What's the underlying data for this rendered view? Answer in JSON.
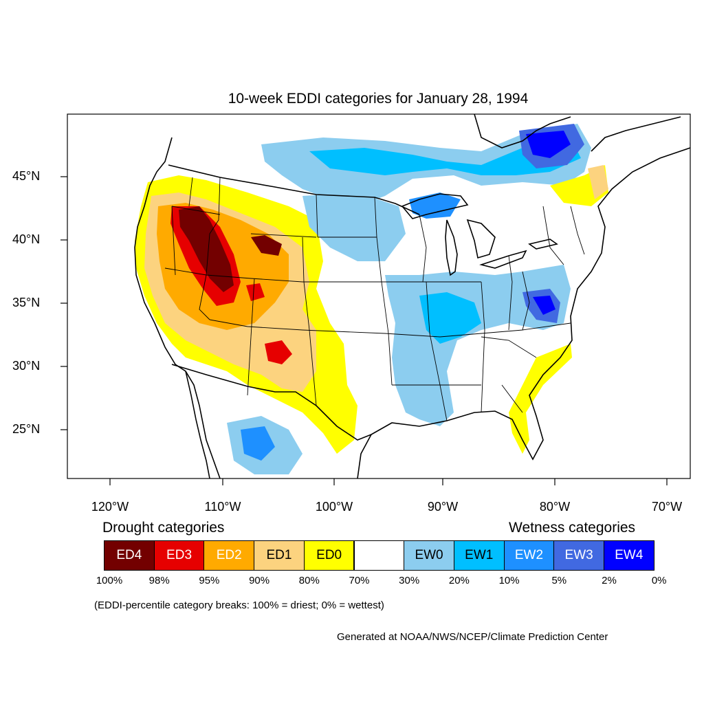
{
  "title": "10-week EDDI categories for January 28, 1994",
  "lat_labels": [
    "45°N",
    "40°N",
    "35°N",
    "30°N",
    "25°N"
  ],
  "lon_labels": [
    "120°W",
    "110°W",
    "100°W",
    "90°W",
    "80°W",
    "70°W"
  ],
  "legend": {
    "drought_heading": "Drought categories",
    "wetness_heading": "Wetness categories",
    "categories": [
      {
        "label": "ED4",
        "color": "#730000",
        "text_color": "#ffffff"
      },
      {
        "label": "ED3",
        "color": "#e60000",
        "text_color": "#ffffff"
      },
      {
        "label": "ED2",
        "color": "#ffaa00",
        "text_color": "#ffffff"
      },
      {
        "label": "ED1",
        "color": "#fcd37f",
        "text_color": "#000000"
      },
      {
        "label": "ED0",
        "color": "#ffff00",
        "text_color": "#000000"
      },
      {
        "label": "",
        "color": "#ffffff",
        "text_color": "#000000"
      },
      {
        "label": "EW0",
        "color": "#8ccdef",
        "text_color": "#000000"
      },
      {
        "label": "EW1",
        "color": "#00bfff",
        "text_color": "#000000"
      },
      {
        "label": "EW2",
        "color": "#1e90ff",
        "text_color": "#ffffff"
      },
      {
        "label": "EW3",
        "color": "#4169e1",
        "text_color": "#ffffff"
      },
      {
        "label": "EW4",
        "color": "#0000ff",
        "text_color": "#ffffff"
      }
    ],
    "percentiles": [
      "100%",
      "98%",
      "95%",
      "90%",
      "80%",
      "70%",
      "30%",
      "20%",
      "10%",
      "5%",
      "2%",
      "0%"
    ]
  },
  "breaks_note": "(EDDI-percentile category breaks: 100% = driest; 0% = wettest)",
  "credit": "Generated at NOAA/NWS/NCEP/Climate Prediction Center"
}
